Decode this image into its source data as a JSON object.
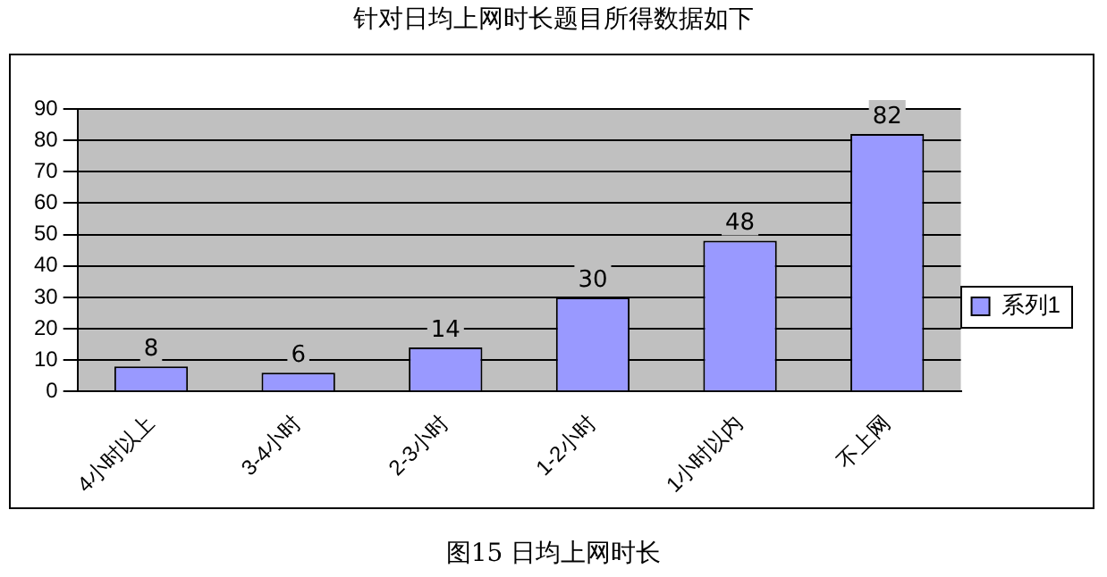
{
  "chart_data": {
    "type": "bar",
    "title": "针对日均上网时长题目所得数据如下",
    "categories": [
      "4小时以上",
      "3-4小时",
      "2-3小时",
      "1-2小时",
      "1小时以内",
      "不上网"
    ],
    "series": [
      {
        "name": "系列1",
        "color": "#9999ff",
        "values": [
          8,
          6,
          14,
          30,
          48,
          82
        ]
      }
    ],
    "ylim": [
      0,
      90
    ],
    "yticks": [
      0,
      10,
      20,
      30,
      40,
      50,
      60,
      70,
      80,
      90
    ],
    "grid": "y",
    "legend": "right",
    "data_labels": true,
    "annotations": [
      "图15 日均上网时长"
    ]
  }
}
